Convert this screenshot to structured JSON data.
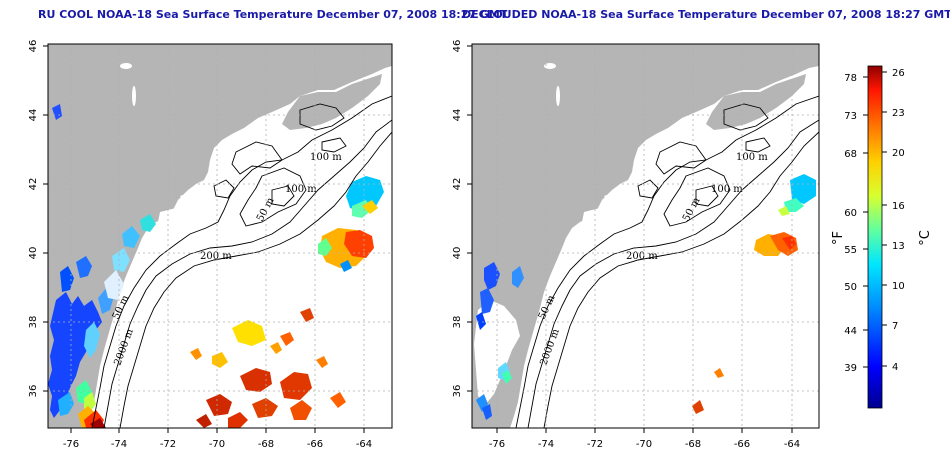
{
  "panels": [
    {
      "id": "left",
      "title": "RU COOL NOAA-18 Sea Surface Temperature December 07, 2008 18:27 GMT",
      "contour_labels": [
        "100 m",
        "100 m",
        "50 m",
        "200 m",
        "50 m",
        "2000 m"
      ],
      "sst_patches": "full"
    },
    {
      "id": "right",
      "title": "DECLOUDED NOAA-18 Sea Surface Temperature December 07, 2008 18:27 GMT",
      "contour_labels": [
        "100 m",
        "100 m",
        "50 m",
        "200 m",
        "50 m",
        "2000 m"
      ],
      "sst_patches": "declouded"
    }
  ],
  "axes": {
    "x_ticks": [
      "-76",
      "-74",
      "-72",
      "-70",
      "-68",
      "-66",
      "-64"
    ],
    "y_ticks": [
      "36",
      "38",
      "40",
      "42",
      "44",
      "46"
    ],
    "lon_range": [
      -77.1,
      -63.2
    ],
    "lat_range": [
      35.0,
      46.0
    ],
    "grid": "dotted"
  },
  "colorbar": {
    "fahrenheit_ticks": [
      "78",
      "73",
      "68",
      "60",
      "55",
      "50",
      "44",
      "39"
    ],
    "celsius_ticks": [
      "26",
      "23",
      "20",
      "16",
      "13",
      "10",
      "7",
      "4"
    ],
    "fahrenheit_unit": "°F",
    "celsius_unit": "°C",
    "range_c": [
      1,
      27
    ]
  },
  "colors": {
    "land": "#b5b5b5",
    "title": "#1a1aa8",
    "ramp": [
      "#00008f",
      "#0000ff",
      "#0080ff",
      "#00e0ff",
      "#40ffbf",
      "#bfff40",
      "#ffe000",
      "#ff8000",
      "#ff2000",
      "#8f0000"
    ]
  }
}
